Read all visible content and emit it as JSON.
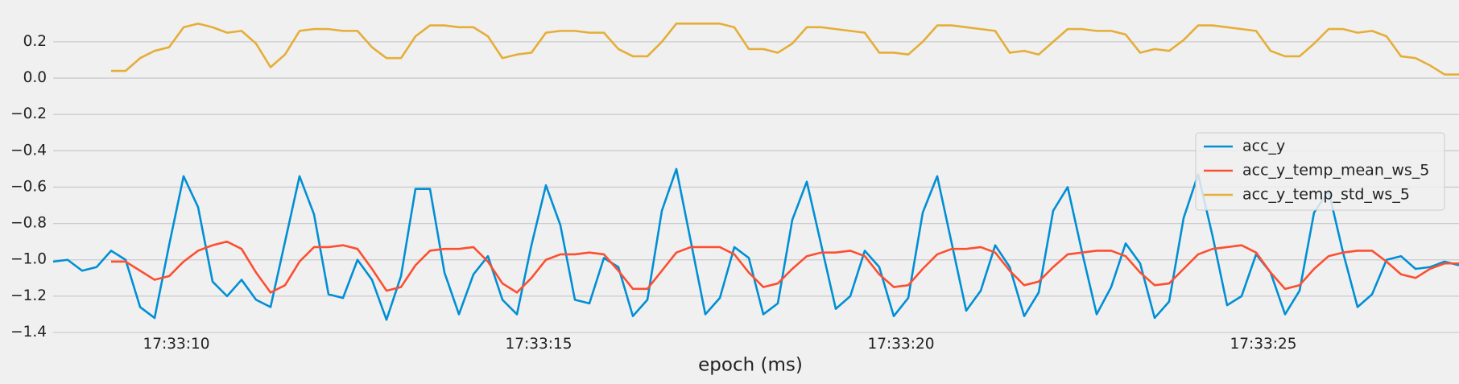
{
  "chart_data": {
    "type": "line",
    "xlabel": "epoch (ms)",
    "x": [
      "17:33:08.3",
      "17:33:08.5",
      "17:33:08.7",
      "17:33:08.9",
      "17:33:09.1",
      "17:33:09.3",
      "17:33:09.5",
      "17:33:09.7",
      "17:33:09.9",
      "17:33:10.1",
      "17:33:10.3",
      "17:33:10.5",
      "17:33:10.7",
      "17:33:10.9",
      "17:33:11.1",
      "17:33:11.3",
      "17:33:11.5",
      "17:33:11.7",
      "17:33:11.9",
      "17:33:12.1",
      "17:33:12.3",
      "17:33:12.5",
      "17:33:12.7",
      "17:33:12.9",
      "17:33:13.1",
      "17:33:13.3",
      "17:33:13.5",
      "17:33:13.7",
      "17:33:13.9",
      "17:33:14.1",
      "17:33:14.3",
      "17:33:14.5",
      "17:33:14.7",
      "17:33:14.9",
      "17:33:15.1",
      "17:33:15.3",
      "17:33:15.5",
      "17:33:15.7",
      "17:33:15.9",
      "17:33:16.1",
      "17:33:16.3",
      "17:33:16.5",
      "17:33:16.7",
      "17:33:16.9",
      "17:33:17.1",
      "17:33:17.3",
      "17:33:17.5",
      "17:33:17.7",
      "17:33:17.9",
      "17:33:18.1",
      "17:33:18.3",
      "17:33:18.5",
      "17:33:18.7",
      "17:33:18.9",
      "17:33:19.1",
      "17:33:19.3",
      "17:33:19.5",
      "17:33:19.7",
      "17:33:19.9",
      "17:33:20.1",
      "17:33:20.3",
      "17:33:20.5",
      "17:33:20.7",
      "17:33:20.9",
      "17:33:21.1",
      "17:33:21.3",
      "17:33:21.5",
      "17:33:21.7",
      "17:33:21.9",
      "17:33:22.1",
      "17:33:22.3",
      "17:33:22.5",
      "17:33:22.7",
      "17:33:22.9",
      "17:33:23.1",
      "17:33:23.3",
      "17:33:23.5",
      "17:33:23.7",
      "17:33:23.9",
      "17:33:24.1",
      "17:33:24.3",
      "17:33:24.5",
      "17:33:24.7",
      "17:33:24.9",
      "17:33:25.1",
      "17:33:25.3",
      "17:33:25.5",
      "17:33:25.7",
      "17:33:25.9",
      "17:33:26.1",
      "17:33:26.3",
      "17:33:26.5",
      "17:33:26.7",
      "17:33:26.9",
      "17:33:27.1",
      "17:33:27.3",
      "17:33:27.5",
      "17:33:27.7"
    ],
    "series": [
      {
        "name": "acc_y",
        "color": "#008fd5",
        "values": [
          -1.01,
          -1.0,
          -1.06,
          -1.04,
          -0.95,
          -1.0,
          -1.26,
          -1.32,
          -0.92,
          -0.54,
          -0.71,
          -1.12,
          -1.2,
          -1.11,
          -1.22,
          -1.26,
          -0.9,
          -0.54,
          -0.75,
          -1.19,
          -1.21,
          -1.0,
          -1.11,
          -1.33,
          -1.09,
          -0.61,
          -0.61,
          -1.07,
          -1.3,
          -1.08,
          -0.98,
          -1.22,
          -1.3,
          -0.92,
          -0.59,
          -0.81,
          -1.22,
          -1.24,
          -0.99,
          -1.04,
          -1.31,
          -1.22,
          -0.73,
          -0.5,
          -0.9,
          -1.3,
          -1.21,
          -0.93,
          -0.99,
          -1.3,
          -1.24,
          -0.78,
          -0.57,
          -0.92,
          -1.27,
          -1.2,
          -0.95,
          -1.04,
          -1.31,
          -1.21,
          -0.74,
          -0.54,
          -0.91,
          -1.28,
          -1.17,
          -0.92,
          -1.04,
          -1.31,
          -1.18,
          -0.73,
          -0.6,
          -0.96,
          -1.3,
          -1.15,
          -0.91,
          -1.02,
          -1.32,
          -1.23,
          -0.77,
          -0.53,
          -0.87,
          -1.25,
          -1.2,
          -0.97,
          -1.07,
          -1.3,
          -1.17,
          -0.74,
          -0.62,
          -0.96,
          -1.26,
          -1.19,
          -1.0,
          -0.98,
          -1.05,
          -1.04,
          -1.01,
          -1.03
        ]
      },
      {
        "name": "acc_y_temp_mean_ws_5",
        "color": "#fc4f30",
        "values": [
          null,
          null,
          null,
          null,
          -1.01,
          -1.01,
          -1.06,
          -1.11,
          -1.09,
          -1.01,
          -0.95,
          -0.92,
          -0.9,
          -0.94,
          -1.07,
          -1.18,
          -1.14,
          -1.01,
          -0.93,
          -0.93,
          -0.92,
          -0.94,
          -1.05,
          -1.17,
          -1.15,
          -1.03,
          -0.95,
          -0.94,
          -0.94,
          -0.93,
          -1.01,
          -1.13,
          -1.18,
          -1.1,
          -1.0,
          -0.97,
          -0.97,
          -0.96,
          -0.97,
          -1.06,
          -1.16,
          -1.16,
          -1.06,
          -0.96,
          -0.93,
          -0.93,
          -0.93,
          -0.97,
          -1.07,
          -1.15,
          -1.13,
          -1.05,
          -0.98,
          -0.96,
          -0.96,
          -0.95,
          -0.98,
          -1.08,
          -1.15,
          -1.14,
          -1.05,
          -0.97,
          -0.94,
          -0.94,
          -0.93,
          -0.96,
          -1.06,
          -1.14,
          -1.12,
          -1.04,
          -0.97,
          -0.96,
          -0.95,
          -0.95,
          -0.98,
          -1.07,
          -1.14,
          -1.13,
          -1.05,
          -0.97,
          -0.94,
          -0.93,
          -0.92,
          -0.96,
          -1.07,
          -1.16,
          -1.14,
          -1.05,
          -0.98,
          -0.96,
          -0.95,
          -0.95,
          -1.01,
          -1.08,
          -1.1,
          -1.05,
          -1.02,
          -1.02
        ]
      },
      {
        "name": "acc_y_temp_std_ws_5",
        "color": "#e5ae38",
        "values": [
          null,
          null,
          null,
          null,
          0.04,
          0.04,
          0.11,
          0.15,
          0.17,
          0.28,
          0.3,
          0.28,
          0.25,
          0.26,
          0.19,
          0.06,
          0.13,
          0.26,
          0.27,
          0.27,
          0.26,
          0.26,
          0.17,
          0.11,
          0.11,
          0.23,
          0.29,
          0.29,
          0.28,
          0.28,
          0.23,
          0.11,
          0.13,
          0.14,
          0.25,
          0.26,
          0.26,
          0.25,
          0.25,
          0.16,
          0.12,
          0.12,
          0.2,
          0.3,
          0.3,
          0.3,
          0.3,
          0.28,
          0.16,
          0.16,
          0.14,
          0.19,
          0.28,
          0.28,
          0.27,
          0.26,
          0.25,
          0.14,
          0.14,
          0.13,
          0.2,
          0.29,
          0.29,
          0.28,
          0.27,
          0.26,
          0.14,
          0.15,
          0.13,
          0.2,
          0.27,
          0.27,
          0.26,
          0.26,
          0.24,
          0.14,
          0.16,
          0.15,
          0.21,
          0.29,
          0.29,
          0.28,
          0.27,
          0.26,
          0.15,
          0.12,
          0.12,
          0.19,
          0.27,
          0.27,
          0.25,
          0.26,
          0.23,
          0.12,
          0.11,
          0.07,
          0.02,
          0.02
        ]
      }
    ],
    "xlim": [
      "17:33:08.3",
      "17:33:27.7"
    ],
    "xticks": [
      "17:33:10",
      "17:33:15",
      "17:33:20",
      "17:33:25"
    ],
    "ylim": [
      -1.4,
      0.43
    ],
    "yticks": [
      {
        "value": 0.2,
        "label": "0.2"
      },
      {
        "value": 0.0,
        "label": "0.0"
      },
      {
        "value": -0.2,
        "label": "−0.2"
      },
      {
        "value": -0.4,
        "label": "−0.4"
      },
      {
        "value": -0.6,
        "label": "−0.6"
      },
      {
        "value": -0.8,
        "label": "−0.8"
      },
      {
        "value": -1.0,
        "label": "−1.0"
      },
      {
        "value": -1.2,
        "label": "−1.2"
      },
      {
        "value": -1.4,
        "label": "−1.4"
      }
    ],
    "grid": true,
    "legend": "right"
  }
}
